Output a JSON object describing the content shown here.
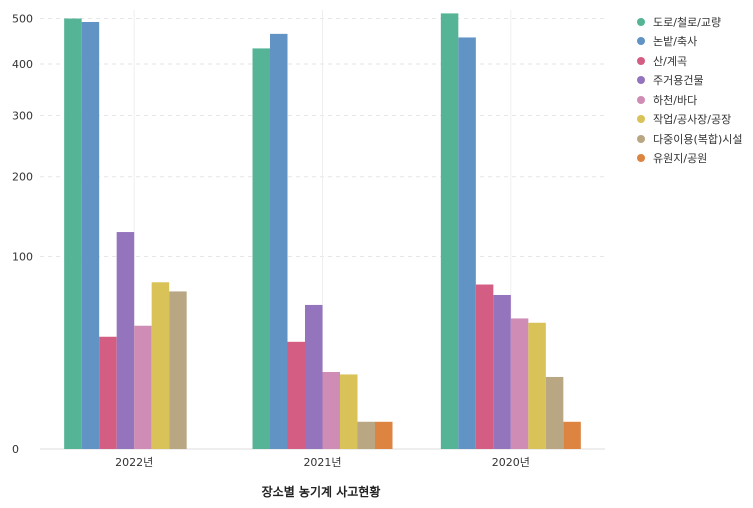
{
  "chart_data": {
    "type": "bar",
    "title": "",
    "xlabel": "장소별 농기계 사고현황",
    "ylabel": "",
    "scale": "sqrt",
    "ylim": [
      0,
      520
    ],
    "yticks": [
      0,
      100,
      200,
      300,
      400,
      500
    ],
    "categories": [
      "2022년",
      "2021년",
      "2020년"
    ],
    "series": [
      {
        "name": "도로/철로/교량",
        "color": "#55b495",
        "values": [
          500,
          433,
          512
        ]
      },
      {
        "name": "논밭/축사",
        "color": "#6193c4",
        "values": [
          492,
          465,
          457
        ]
      },
      {
        "name": "산/계곡",
        "color": "#d45d84",
        "values": [
          34,
          31,
          73
        ]
      },
      {
        "name": "주거용건물",
        "color": "#9474bd",
        "values": [
          127,
          56,
          64
        ]
      },
      {
        "name": "하천/바다",
        "color": "#cf8db6",
        "values": [
          41,
          16,
          46
        ]
      },
      {
        "name": "작업/공사장/공장",
        "color": "#d9c257",
        "values": [
          75,
          15,
          43
        ]
      },
      {
        "name": "다중이용(복합)시설",
        "color": "#b9a683",
        "values": [
          67,
          2,
          14
        ]
      },
      {
        "name": "유원지/공원",
        "color": "#dd8540",
        "values": [
          null,
          2,
          2
        ]
      }
    ],
    "grid": true,
    "legend_position": "right"
  }
}
